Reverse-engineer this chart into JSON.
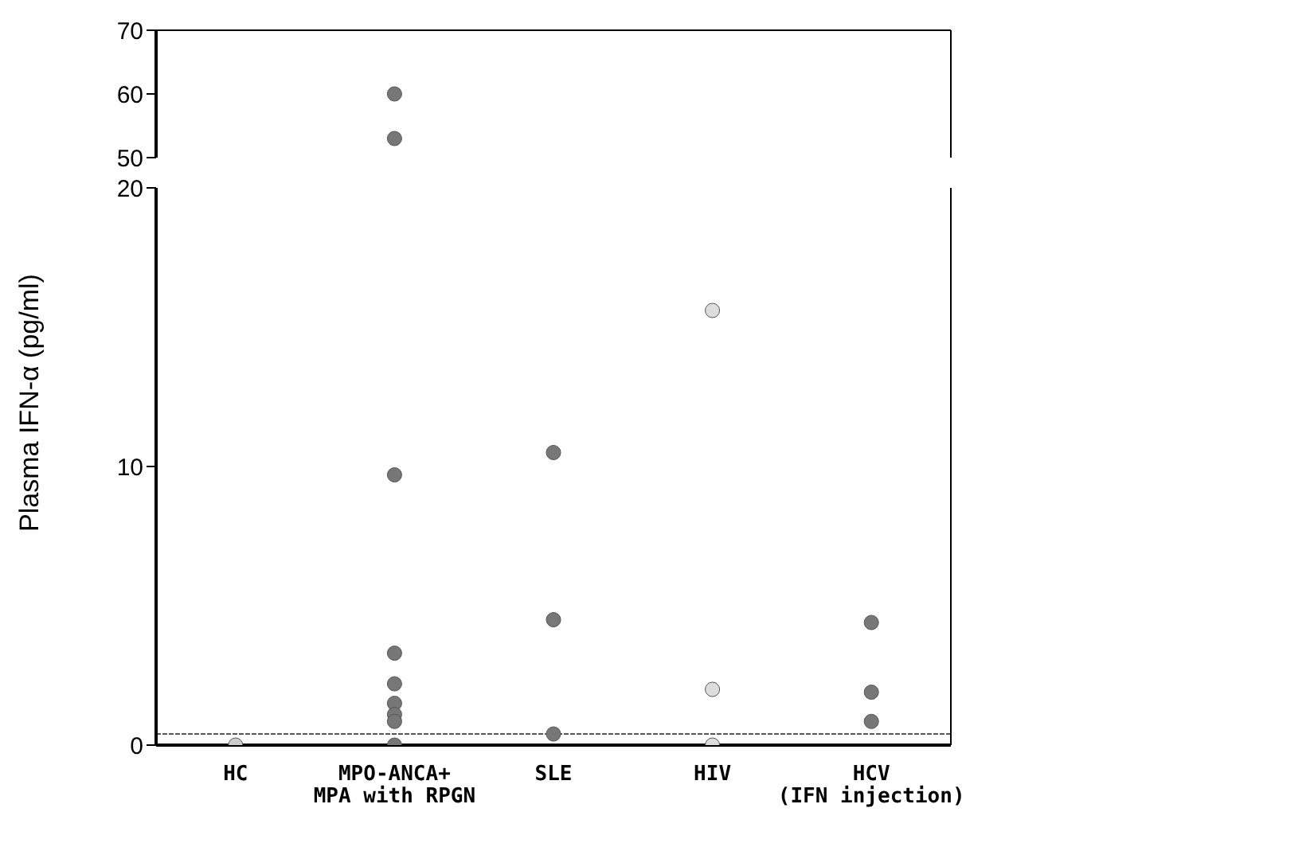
{
  "chart_data": [
    {
      "type": "scatter",
      "categories": [
        "HC",
        "MPO-ANCA+\nMPA with RPGN",
        "SLE",
        "HIV",
        "HCV\n(IFN injection)"
      ],
      "marker": "circle",
      "tick_labels": "y",
      "ylim": [
        50,
        70
      ],
      "yticks": [
        50,
        60,
        70
      ],
      "series": [
        {
          "color": "#777777",
          "x": [
            "MPO-ANCA+\nMPA with RPGN",
            "MPO-ANCA+\nMPA with RPGN"
          ],
          "values": [
            60,
            53
          ]
        }
      ]
    },
    {
      "type": "scatter",
      "categories": [
        "HC",
        "MPO-ANCA+\nMPA with RPGN",
        "SLE",
        "HIV",
        "HCV\n(IFN injection)"
      ],
      "marker": "circle",
      "ylabel": "Plasma IFN-α (pg/ml)",
      "ylim": [
        0,
        20
      ],
      "yticks": [
        0,
        10,
        20
      ],
      "ref_lines": [
        {
          "axis": "y",
          "value": 0.4,
          "color": "#555555"
        }
      ],
      "series": [
        {
          "color": "#cccccc",
          "x": [
            "HC"
          ],
          "values": [
            0
          ]
        },
        {
          "color": "#777777",
          "x": [
            "MPO-ANCA+\nMPA with RPGN",
            "MPO-ANCA+\nMPA with RPGN",
            "MPO-ANCA+\nMPA with RPGN",
            "MPO-ANCA+\nMPA with RPGN",
            "MPO-ANCA+\nMPA with RPGN",
            "MPO-ANCA+\nMPA with RPGN",
            "MPO-ANCA+\nMPA with RPGN"
          ],
          "values": [
            9.7,
            3.3,
            2.2,
            1.5,
            1.1,
            0.85,
            0
          ]
        },
        {
          "color": "#777777",
          "x": [
            "SLE",
            "SLE",
            "SLE"
          ],
          "values": [
            10.5,
            4.5,
            0.4
          ]
        },
        {
          "color": "#dddddd",
          "x": [
            "HIV",
            "HIV",
            "HIV"
          ],
          "values": [
            15.6,
            2.0,
            0
          ]
        },
        {
          "color": "#777777",
          "x": [
            "HCV\n(IFN injection)",
            "HCV\n(IFN injection)",
            "HCV\n(IFN injection)"
          ],
          "values": [
            4.4,
            1.9,
            0.85
          ]
        }
      ]
    }
  ]
}
